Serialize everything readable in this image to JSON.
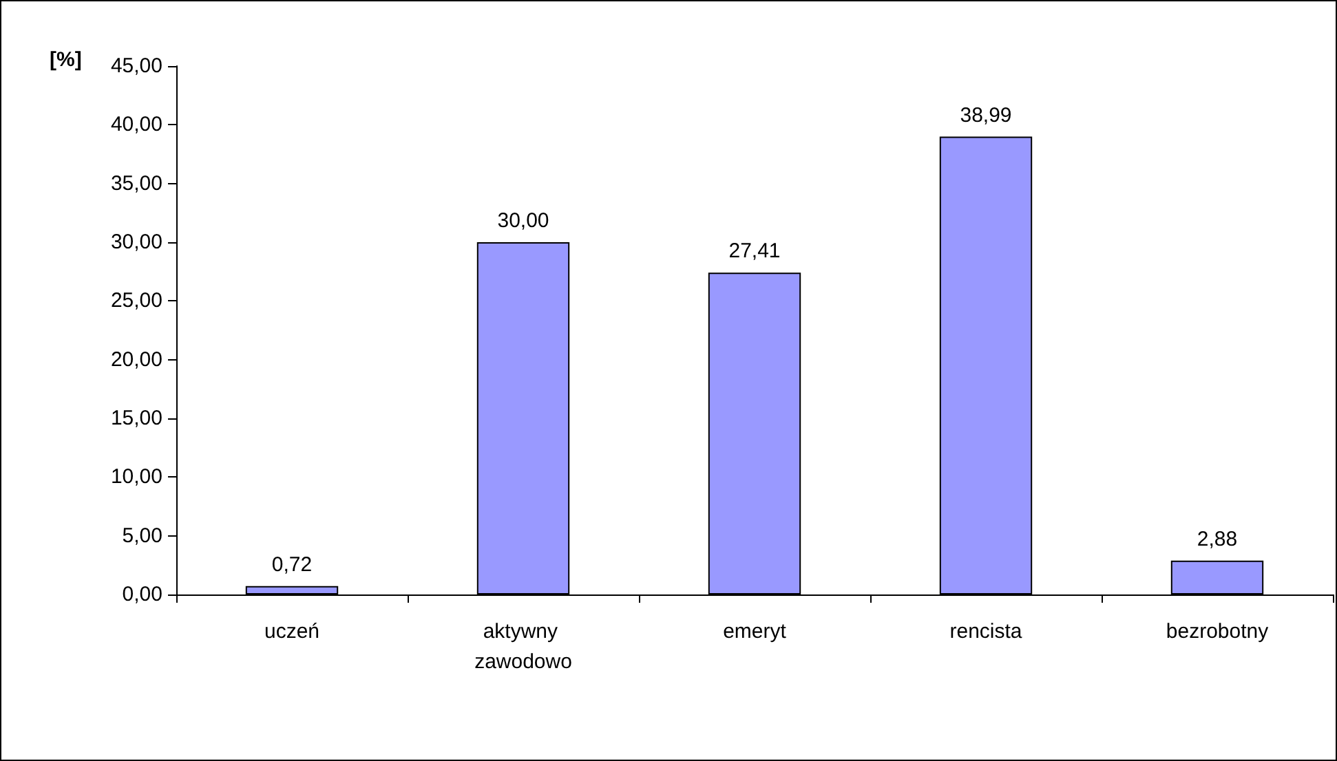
{
  "chart_data": {
    "type": "bar",
    "ylabel": "[%]",
    "categories": [
      "uczeń",
      "aktywny zawodowo",
      "emeryt",
      "rencista",
      "bezrobotny"
    ],
    "values": [
      0.72,
      30.0,
      27.41,
      38.99,
      2.88
    ],
    "value_labels": [
      "0,72",
      "30,00",
      "27,41",
      "38,99",
      "2,88"
    ],
    "color": "#9999ff",
    "ylim": [
      0,
      45
    ],
    "yticks": [
      {
        "value": 0,
        "label": "0,00"
      },
      {
        "value": 5,
        "label": "5,00"
      },
      {
        "value": 10,
        "label": "10,00"
      },
      {
        "value": 15,
        "label": "15,00"
      },
      {
        "value": 20,
        "label": "20,00"
      },
      {
        "value": 25,
        "label": "25,00"
      },
      {
        "value": 30,
        "label": "30,00"
      },
      {
        "value": 35,
        "label": "35,00"
      },
      {
        "value": 40,
        "label": "40,00"
      },
      {
        "value": 45,
        "label": "45,00"
      }
    ]
  }
}
